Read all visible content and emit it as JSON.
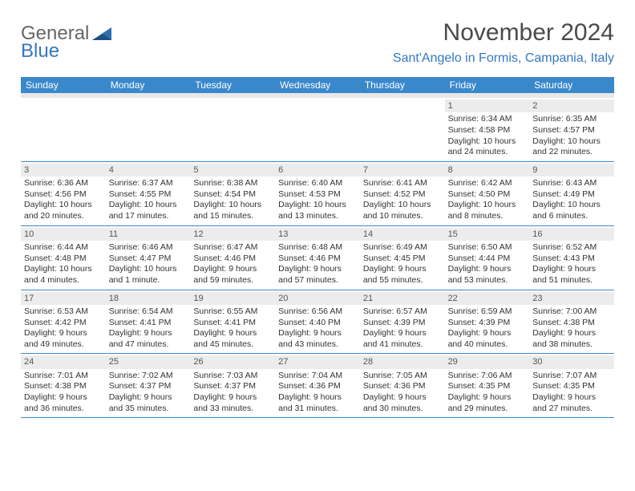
{
  "logo": {
    "line1": "General",
    "line2": "Blue",
    "icon_fill": "#2f6fb0"
  },
  "header": {
    "month_title": "November 2024",
    "location": "Sant'Angelo in Formis, Campania, Italy"
  },
  "colors": {
    "header_bg": "#3a88cc",
    "header_fg": "#ffffff",
    "daynum_bg": "#ececec",
    "rule": "#3a88cc",
    "text": "#333333"
  },
  "day_names": [
    "Sunday",
    "Monday",
    "Tuesday",
    "Wednesday",
    "Thursday",
    "Friday",
    "Saturday"
  ],
  "weeks": [
    [
      null,
      null,
      null,
      null,
      null,
      {
        "n": "1",
        "sr": "6:34 AM",
        "ss": "4:58 PM",
        "dl": "10 hours and 24 minutes."
      },
      {
        "n": "2",
        "sr": "6:35 AM",
        "ss": "4:57 PM",
        "dl": "10 hours and 22 minutes."
      }
    ],
    [
      {
        "n": "3",
        "sr": "6:36 AM",
        "ss": "4:56 PM",
        "dl": "10 hours and 20 minutes."
      },
      {
        "n": "4",
        "sr": "6:37 AM",
        "ss": "4:55 PM",
        "dl": "10 hours and 17 minutes."
      },
      {
        "n": "5",
        "sr": "6:38 AM",
        "ss": "4:54 PM",
        "dl": "10 hours and 15 minutes."
      },
      {
        "n": "6",
        "sr": "6:40 AM",
        "ss": "4:53 PM",
        "dl": "10 hours and 13 minutes."
      },
      {
        "n": "7",
        "sr": "6:41 AM",
        "ss": "4:52 PM",
        "dl": "10 hours and 10 minutes."
      },
      {
        "n": "8",
        "sr": "6:42 AM",
        "ss": "4:50 PM",
        "dl": "10 hours and 8 minutes."
      },
      {
        "n": "9",
        "sr": "6:43 AM",
        "ss": "4:49 PM",
        "dl": "10 hours and 6 minutes."
      }
    ],
    [
      {
        "n": "10",
        "sr": "6:44 AM",
        "ss": "4:48 PM",
        "dl": "10 hours and 4 minutes."
      },
      {
        "n": "11",
        "sr": "6:46 AM",
        "ss": "4:47 PM",
        "dl": "10 hours and 1 minute."
      },
      {
        "n": "12",
        "sr": "6:47 AM",
        "ss": "4:46 PM",
        "dl": "9 hours and 59 minutes."
      },
      {
        "n": "13",
        "sr": "6:48 AM",
        "ss": "4:46 PM",
        "dl": "9 hours and 57 minutes."
      },
      {
        "n": "14",
        "sr": "6:49 AM",
        "ss": "4:45 PM",
        "dl": "9 hours and 55 minutes."
      },
      {
        "n": "15",
        "sr": "6:50 AM",
        "ss": "4:44 PM",
        "dl": "9 hours and 53 minutes."
      },
      {
        "n": "16",
        "sr": "6:52 AM",
        "ss": "4:43 PM",
        "dl": "9 hours and 51 minutes."
      }
    ],
    [
      {
        "n": "17",
        "sr": "6:53 AM",
        "ss": "4:42 PM",
        "dl": "9 hours and 49 minutes."
      },
      {
        "n": "18",
        "sr": "6:54 AM",
        "ss": "4:41 PM",
        "dl": "9 hours and 47 minutes."
      },
      {
        "n": "19",
        "sr": "6:55 AM",
        "ss": "4:41 PM",
        "dl": "9 hours and 45 minutes."
      },
      {
        "n": "20",
        "sr": "6:56 AM",
        "ss": "4:40 PM",
        "dl": "9 hours and 43 minutes."
      },
      {
        "n": "21",
        "sr": "6:57 AM",
        "ss": "4:39 PM",
        "dl": "9 hours and 41 minutes."
      },
      {
        "n": "22",
        "sr": "6:59 AM",
        "ss": "4:39 PM",
        "dl": "9 hours and 40 minutes."
      },
      {
        "n": "23",
        "sr": "7:00 AM",
        "ss": "4:38 PM",
        "dl": "9 hours and 38 minutes."
      }
    ],
    [
      {
        "n": "24",
        "sr": "7:01 AM",
        "ss": "4:38 PM",
        "dl": "9 hours and 36 minutes."
      },
      {
        "n": "25",
        "sr": "7:02 AM",
        "ss": "4:37 PM",
        "dl": "9 hours and 35 minutes."
      },
      {
        "n": "26",
        "sr": "7:03 AM",
        "ss": "4:37 PM",
        "dl": "9 hours and 33 minutes."
      },
      {
        "n": "27",
        "sr": "7:04 AM",
        "ss": "4:36 PM",
        "dl": "9 hours and 31 minutes."
      },
      {
        "n": "28",
        "sr": "7:05 AM",
        "ss": "4:36 PM",
        "dl": "9 hours and 30 minutes."
      },
      {
        "n": "29",
        "sr": "7:06 AM",
        "ss": "4:35 PM",
        "dl": "9 hours and 29 minutes."
      },
      {
        "n": "30",
        "sr": "7:07 AM",
        "ss": "4:35 PM",
        "dl": "9 hours and 27 minutes."
      }
    ]
  ],
  "labels": {
    "sunrise": "Sunrise: ",
    "sunset": "Sunset: ",
    "daylight": "Daylight: "
  }
}
